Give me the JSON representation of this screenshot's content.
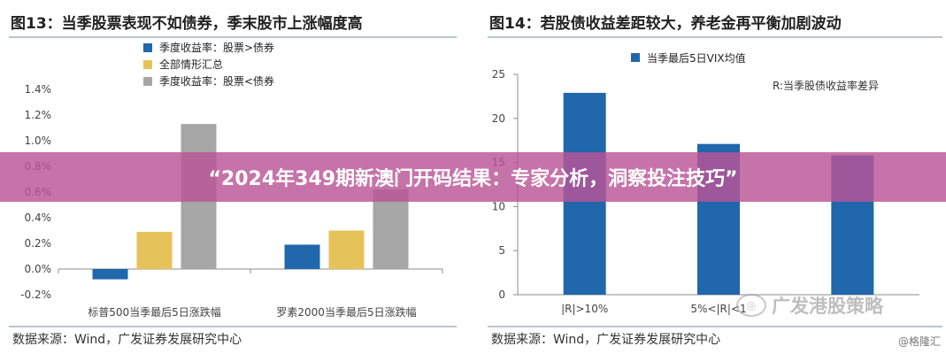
{
  "banner": {
    "text": "“2024年349期新澳门开码结果：专家分析，洞察投注技巧”"
  },
  "watermark": {
    "text": "广发港股策略",
    "corner": "@格隆汇"
  },
  "colors": {
    "blue": "#2067ab",
    "gold": "#e6c35a",
    "gray": "#a6a6a6"
  },
  "chart_data": [
    {
      "type": "bar",
      "title": "图13：当季股票表现不如债券，季末股市上涨幅度高",
      "source": "数据来源：Wind，广发证券发展研究中心",
      "categories": [
        "标普500当季最后5日涨跌幅",
        "罗素2000当季最后5日涨跌幅"
      ],
      "series": [
        {
          "name": "季度收益率：股票>债券",
          "color": "#2067ab",
          "values": [
            -0.08,
            0.19
          ]
        },
        {
          "name": "全部情形汇总",
          "color": "#e6c35a",
          "values": [
            0.29,
            0.3
          ]
        },
        {
          "name": "季度收益率：股票<债券",
          "color": "#a6a6a6",
          "values": [
            1.13,
            0.62
          ]
        }
      ],
      "yticks": [
        "1.4%",
        "1.2%",
        "1.0%",
        "0.8%",
        "0.6%",
        "0.4%",
        "0.2%",
        "0.0%",
        "-0.2%"
      ],
      "ylim": [
        -0.2,
        1.4
      ],
      "legend_position": "top-left",
      "grid": false
    },
    {
      "type": "bar",
      "title": "图14：若股债收益差距较大，养老金再平衡加剧波动",
      "source": "数据来源：Wind，广发证券发展研究中心",
      "categories": [
        "|R|>10%",
        "5%<|R|<1",
        ""
      ],
      "series": [
        {
          "name": "当季最后5日VIX均值",
          "color": "#2067ab",
          "values": [
            22.9,
            17.1,
            15.8
          ]
        }
      ],
      "note": "R:当季股债收益率差异",
      "yticks": [
        "25",
        "20",
        "15",
        "10",
        "5",
        "0"
      ],
      "ylim": [
        0,
        25
      ],
      "legend_position": "top-center",
      "grid": false
    }
  ]
}
